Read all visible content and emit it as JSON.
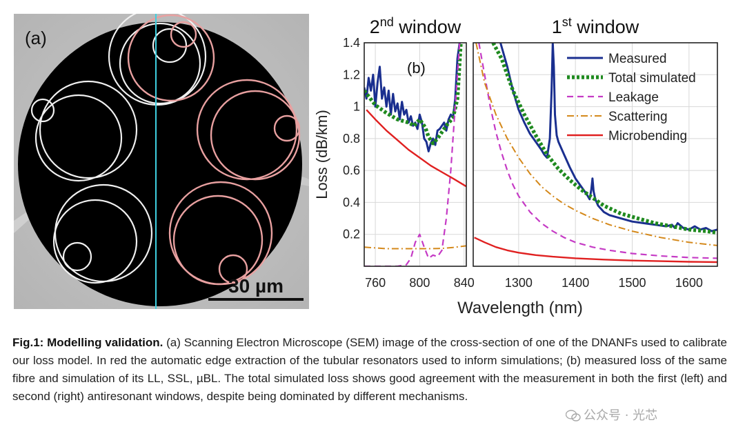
{
  "sem_panel": {
    "label": "(a)",
    "scale_bar": "30 µm"
  },
  "chart_data": [
    {
      "type": "line",
      "label": "(b)",
      "title": "2nd window",
      "title_main": "2",
      "title_sup": "nd",
      "title_rest": " window",
      "ylabel": "Loss (dB/km)",
      "xlim": [
        750,
        842
      ],
      "ylim": [
        0,
        1.4
      ],
      "xticks": [
        760,
        800,
        840
      ],
      "yticks": [
        0.2,
        0.4,
        0.6,
        0.8,
        1,
        1.2,
        1.4
      ],
      "grid": true,
      "series": [
        {
          "name": "Measured",
          "color": "#1a2f8f",
          "x": [
            750,
            752,
            754,
            756,
            758,
            760,
            762,
            764,
            766,
            768,
            770,
            772,
            774,
            776,
            778,
            780,
            782,
            784,
            786,
            788,
            790,
            792,
            794,
            796,
            798,
            800,
            802,
            804,
            806,
            808,
            810,
            812,
            814,
            816,
            818,
            820,
            822,
            824,
            826,
            828,
            830,
            832,
            834,
            836
          ],
          "y": [
            1.12,
            1.05,
            1.18,
            1.1,
            1.2,
            1.0,
            1.15,
            1.25,
            1.05,
            1.12,
            1.0,
            1.1,
            0.95,
            1.08,
            0.97,
            1.02,
            0.92,
            1.03,
            0.95,
            0.98,
            0.9,
            0.94,
            0.88,
            0.9,
            0.86,
            0.95,
            0.9,
            0.8,
            0.78,
            0.72,
            0.77,
            0.8,
            0.76,
            0.85,
            0.86,
            0.88,
            0.9,
            0.85,
            0.92,
            0.95,
            0.93,
            1.05,
            1.3,
            1.4
          ]
        },
        {
          "name": "Total simulated",
          "color": "#1f8a1f",
          "x": [
            750,
            760,
            770,
            780,
            790,
            795,
            800,
            805,
            808,
            812,
            816,
            820,
            825,
            830,
            834,
            837
          ],
          "y": [
            1.1,
            1.01,
            0.96,
            0.92,
            0.9,
            0.88,
            0.92,
            0.87,
            0.81,
            0.77,
            0.8,
            0.84,
            0.89,
            0.93,
            1.05,
            1.4
          ]
        },
        {
          "name": "Leakage",
          "color": "#c53ac5",
          "x": [
            750,
            770,
            780,
            788,
            792,
            796,
            800,
            804,
            808,
            812,
            816,
            820,
            824,
            828,
            832,
            836
          ],
          "y": [
            0.0,
            0.0,
            0.0,
            0.01,
            0.05,
            0.15,
            0.2,
            0.12,
            0.05,
            0.07,
            0.06,
            0.1,
            0.3,
            0.6,
            1.0,
            1.4
          ]
        },
        {
          "name": "Scattering",
          "color": "#d4881a",
          "x": [
            750,
            760,
            770,
            780,
            790,
            800,
            810,
            820,
            830,
            842
          ],
          "y": [
            0.12,
            0.115,
            0.11,
            0.11,
            0.11,
            0.11,
            0.11,
            0.112,
            0.118,
            0.128
          ]
        },
        {
          "name": "Microbending",
          "color": "#e02020",
          "x": [
            752,
            760,
            770,
            780,
            790,
            800,
            810,
            820,
            830,
            842
          ],
          "y": [
            0.98,
            0.92,
            0.85,
            0.79,
            0.73,
            0.68,
            0.63,
            0.59,
            0.55,
            0.5
          ]
        }
      ]
    },
    {
      "type": "line",
      "title": "1st window",
      "title_main": "1",
      "title_sup": "st",
      "title_rest": " window",
      "xlabel": "Wavelength (nm)",
      "xlim": [
        1220,
        1650
      ],
      "ylim": [
        0,
        1.4
      ],
      "xticks": [
        1300,
        1400,
        1500,
        1600
      ],
      "grid": true,
      "legend": "top-right",
      "series": [
        {
          "name": "Measured",
          "color": "#1a2f8f",
          "x": [
            1268,
            1280,
            1290,
            1300,
            1310,
            1320,
            1330,
            1340,
            1345,
            1350,
            1355,
            1358,
            1360,
            1362,
            1364,
            1367,
            1370,
            1380,
            1390,
            1400,
            1410,
            1420,
            1425,
            1428,
            1430,
            1432,
            1435,
            1440,
            1450,
            1460,
            1480,
            1500,
            1520,
            1540,
            1560,
            1570,
            1575,
            1580,
            1590,
            1600,
            1610,
            1620,
            1630,
            1640,
            1650
          ],
          "y": [
            1.4,
            1.25,
            1.1,
            0.98,
            0.9,
            0.83,
            0.78,
            0.73,
            0.7,
            0.68,
            0.8,
            1.1,
            1.4,
            1.25,
            0.95,
            0.82,
            0.78,
            0.7,
            0.62,
            0.55,
            0.5,
            0.45,
            0.42,
            0.48,
            0.55,
            0.47,
            0.42,
            0.38,
            0.34,
            0.32,
            0.3,
            0.28,
            0.27,
            0.26,
            0.25,
            0.26,
            0.24,
            0.27,
            0.24,
            0.23,
            0.25,
            0.23,
            0.24,
            0.22,
            0.23
          ]
        },
        {
          "name": "Total simulated",
          "color": "#1f8a1f",
          "x": [
            1255,
            1270,
            1290,
            1310,
            1330,
            1350,
            1370,
            1390,
            1410,
            1430,
            1450,
            1480,
            1510,
            1540,
            1570,
            1600,
            1630,
            1650
          ],
          "y": [
            1.4,
            1.3,
            1.1,
            0.95,
            0.82,
            0.7,
            0.61,
            0.54,
            0.48,
            0.43,
            0.38,
            0.33,
            0.3,
            0.27,
            0.25,
            0.23,
            0.22,
            0.21
          ]
        },
        {
          "name": "Leakage",
          "color": "#c53ac5",
          "x": [
            1230,
            1240,
            1250,
            1260,
            1270,
            1280,
            1290,
            1300,
            1320,
            1340,
            1360,
            1380,
            1400,
            1430,
            1460,
            1500,
            1550,
            1600,
            1650
          ],
          "y": [
            1.4,
            1.2,
            1.0,
            0.84,
            0.71,
            0.6,
            0.51,
            0.44,
            0.34,
            0.27,
            0.22,
            0.18,
            0.15,
            0.12,
            0.1,
            0.08,
            0.065,
            0.055,
            0.05
          ]
        },
        {
          "name": "Scattering",
          "color": "#d4881a",
          "x": [
            1225,
            1240,
            1260,
            1280,
            1300,
            1320,
            1340,
            1360,
            1380,
            1400,
            1430,
            1460,
            1500,
            1550,
            1600,
            1650
          ],
          "y": [
            1.4,
            1.15,
            0.95,
            0.8,
            0.68,
            0.58,
            0.5,
            0.44,
            0.39,
            0.35,
            0.3,
            0.26,
            0.22,
            0.18,
            0.15,
            0.13
          ]
        },
        {
          "name": "Microbending",
          "color": "#e02020",
          "x": [
            1222,
            1240,
            1260,
            1280,
            1300,
            1330,
            1360,
            1400,
            1450,
            1500,
            1550,
            1600,
            1650
          ],
          "y": [
            0.18,
            0.15,
            0.12,
            0.1,
            0.085,
            0.07,
            0.06,
            0.05,
            0.042,
            0.036,
            0.032,
            0.028,
            0.026
          ]
        }
      ]
    }
  ],
  "caption": {
    "label": "Fig.1: Modelling validation.",
    "text": " (a) Scanning Electron Microscope (SEM) image of the cross-section of one of the DNANFs used to calibrate our loss model. In red the automatic edge extraction of the tubular resonators used to inform simulations; (b) measured loss of the same fibre and simulation of its LL, SSL, µBL. The total simulated loss shows good agreement with the measurement in both the first (left) and second (right) antiresonant windows, despite being dominated by different mechanisms."
  },
  "watermark": {
    "text": "公众号 · 光芯",
    "icon": "wechat-icon"
  }
}
